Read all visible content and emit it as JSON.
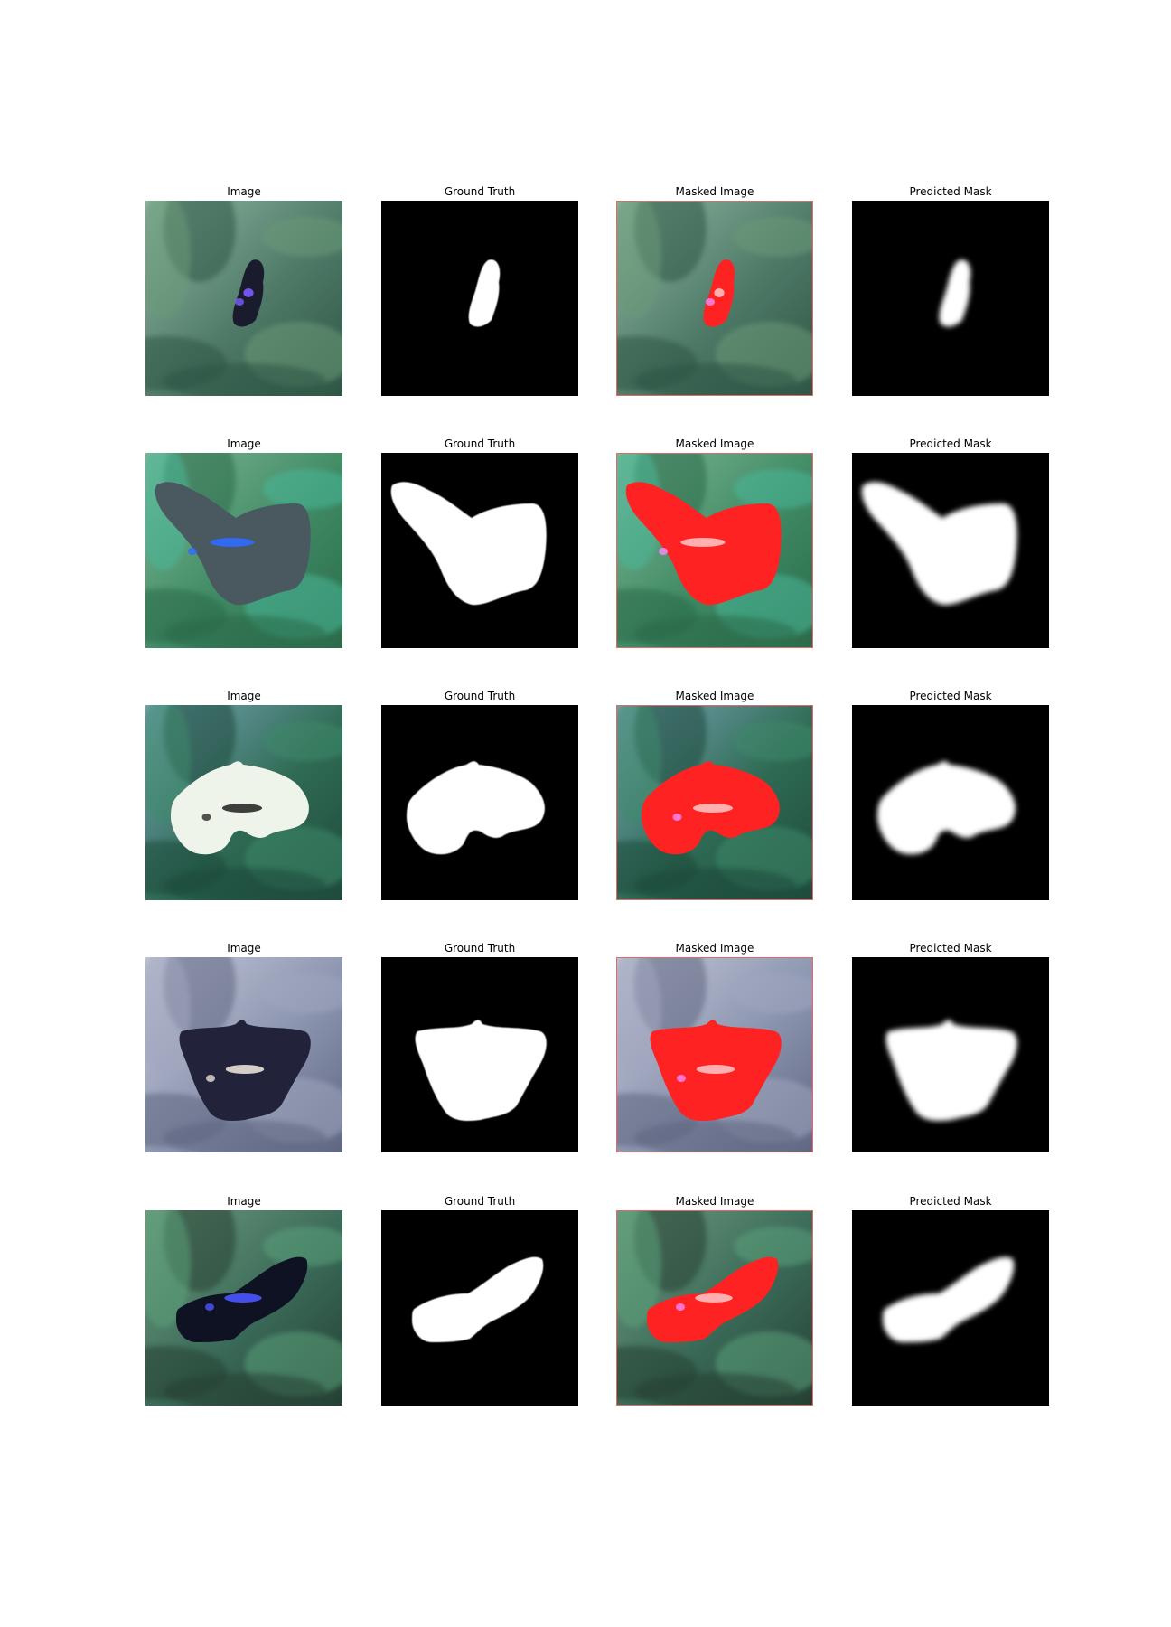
{
  "figure": {
    "column_titles": [
      "Image",
      "Ground Truth",
      "Masked Image",
      "Predicted Mask"
    ],
    "rows": [
      {
        "titles": [
          "Image",
          "Ground Truth",
          "Masked Image",
          "Predicted Mask"
        ]
      },
      {
        "titles": [
          "Image",
          "Ground Truth",
          "Masked Image",
          "Predicted Mask"
        ]
      },
      {
        "titles": [
          "Image",
          "Ground Truth",
          "Masked Image",
          "Predicted Mask"
        ]
      },
      {
        "titles": [
          "Image",
          "Ground Truth",
          "Masked Image",
          "Predicted Mask"
        ]
      },
      {
        "titles": [
          "Image",
          "Ground Truth",
          "Masked Image",
          "Predicted Mask"
        ]
      }
    ],
    "colors": {
      "mask_overlay": "#ff2222",
      "mask_foreground": "#ffffff",
      "mask_background": "#000000"
    }
  }
}
